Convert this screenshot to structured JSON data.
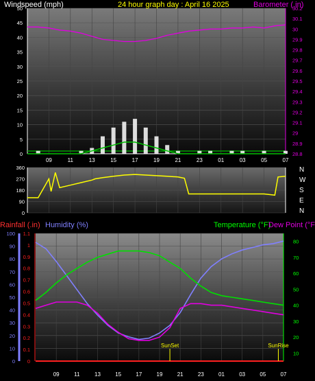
{
  "header": {
    "windspeed_label": "Windspeed (mph)",
    "title": "24 hour graph day : April 16 2025",
    "barometer_label": "Barometer (.in)"
  },
  "footer_labels": {
    "rainfall_label": "Rainfall (.in)",
    "humidity_label": "Humidity (%)",
    "temperature_label": "Temperature (°F)",
    "dewpoint_label": "Dew Point (°F)",
    "sunset_label": "SunSet",
    "sunrise_label": "SunRise"
  },
  "colors": {
    "wind": "#ffffff",
    "wind_avg": "#00c000",
    "barometer": "#e000e0",
    "direction": "#ffff00",
    "humidity": "#8080ff",
    "temperature": "#00e000",
    "dewpoint": "#e000e0",
    "rainfall": "#ff2020",
    "axis_left_labels": "#ffffff",
    "barometer_axis": "#e000e0",
    "temp_axis": "#00ff00"
  },
  "x_ticks": [
    "09",
    "11",
    "13",
    "15",
    "17",
    "19",
    "21",
    "23",
    "01",
    "03",
    "05",
    "07"
  ],
  "chart_data": [
    {
      "type": "line",
      "name": "wind_barometer",
      "title": "24 hour graph day : April 16 2025",
      "ylabel": "Windspeed (mph)",
      "y2label": "Barometer (.in)",
      "ylim": [
        0,
        50
      ],
      "y_ticks": [
        0,
        5,
        10,
        15,
        20,
        25,
        30,
        35,
        40,
        45,
        50
      ],
      "y2lim": [
        28.8,
        30.2
      ],
      "y2_ticks": [
        "28.8",
        "28.9",
        "29",
        "29.1",
        "29.2",
        "29.3",
        "29.4",
        "29.5",
        "29.6",
        "29.7",
        "29.8",
        "29.9",
        "30",
        "30.1",
        "30.2"
      ],
      "x_hours": [
        7,
        8,
        9,
        10,
        11,
        12,
        13,
        14,
        15,
        16,
        17,
        18,
        19,
        20,
        21,
        22,
        23,
        24,
        25,
        26,
        27,
        28,
        29,
        30,
        31
      ],
      "series": [
        {
          "name": "Barometer",
          "values": [
            30.02,
            30.02,
            30.01,
            29.99,
            29.98,
            29.96,
            29.93,
            29.9,
            29.89,
            29.88,
            29.88,
            29.89,
            29.91,
            29.94,
            29.96,
            29.98,
            29.99,
            30.0,
            30.0,
            30.01,
            30.01,
            30.02,
            30.01,
            30.03,
            30.04
          ]
        },
        {
          "name": "Wind gust",
          "values": [
            0,
            1,
            0,
            0,
            0,
            1,
            2,
            6,
            9,
            11,
            12,
            9,
            6,
            3,
            1,
            0,
            1,
            1,
            0,
            1,
            1,
            0,
            1,
            0,
            1
          ]
        },
        {
          "name": "Wind average",
          "values": [
            0,
            0,
            0,
            0,
            0,
            0,
            1,
            2,
            3,
            4,
            4,
            3,
            2,
            1,
            0,
            0,
            0,
            0,
            0,
            0,
            0,
            0,
            0,
            0,
            0
          ]
        }
      ]
    },
    {
      "type": "line",
      "name": "wind_direction",
      "ylim": [
        0,
        360
      ],
      "y_ticks": [
        0,
        90,
        180,
        270,
        360
      ],
      "dir_labels": [
        "N",
        "W",
        "S",
        "E",
        "N"
      ],
      "x_hours": [
        7,
        8,
        9,
        9.2,
        9.6,
        10,
        11,
        12,
        13,
        13.3,
        14,
        15,
        16,
        17,
        18,
        19,
        20,
        21,
        21.6,
        22,
        23,
        24,
        25,
        26,
        27,
        28,
        29,
        30,
        30.3,
        31
      ],
      "values": [
        120,
        120,
        270,
        170,
        320,
        200,
        220,
        240,
        260,
        270,
        280,
        290,
        300,
        305,
        300,
        295,
        290,
        285,
        275,
        150,
        150,
        150,
        150,
        150,
        150,
        150,
        150,
        140,
        285,
        290
      ]
    },
    {
      "type": "line",
      "name": "humidity_temperature",
      "ylabel": "Humidity (%)",
      "y2label": "Temperature (°F)",
      "ylim": [
        0,
        100
      ],
      "y_ticks": [
        0,
        10,
        20,
        30,
        40,
        50,
        60,
        70,
        80,
        90,
        100
      ],
      "rain_lim": [
        0,
        1.1
      ],
      "rain_ticks": [
        "0",
        "0.1",
        "0.2",
        "0.3",
        "0.4",
        "0.5",
        "0.6",
        "0.7",
        "0.8",
        "0.9",
        "1",
        "1.1"
      ],
      "temp_lim": [
        5,
        85
      ],
      "temp_ticks": [
        10,
        20,
        30,
        40,
        50,
        60,
        70,
        80
      ],
      "x_hours": [
        7,
        8,
        9,
        10,
        11,
        12,
        13,
        14,
        15,
        16,
        17,
        18,
        19,
        20,
        21,
        22,
        23,
        24,
        25,
        26,
        27,
        28,
        29,
        30,
        31
      ],
      "series": [
        {
          "name": "Humidity",
          "values": [
            93,
            88,
            78,
            67,
            56,
            45,
            36,
            28,
            22,
            19,
            17,
            18,
            22,
            28,
            38,
            52,
            65,
            74,
            80,
            84,
            87,
            89,
            91,
            92,
            94
          ]
        },
        {
          "name": "Temperature",
          "values": [
            43,
            48,
            54,
            59,
            63,
            67,
            70,
            72,
            74,
            74,
            74,
            73,
            71,
            67,
            63,
            57,
            52,
            48,
            46,
            45,
            44,
            43,
            42,
            41,
            40
          ]
        },
        {
          "name": "Dew Point",
          "values": [
            38,
            40,
            42,
            42,
            42,
            40,
            35,
            28,
            23,
            19,
            18,
            18,
            20,
            26,
            38,
            41,
            41,
            40,
            40,
            39,
            38,
            37,
            36,
            35,
            34
          ]
        },
        {
          "name": "Rainfall",
          "values": [
            0,
            0,
            0,
            0,
            0,
            0,
            0,
            0,
            0,
            0,
            0,
            0,
            0,
            0,
            0,
            0,
            0,
            0,
            0,
            0,
            0,
            0,
            0,
            0,
            0
          ]
        }
      ],
      "markers": [
        {
          "label": "SunSet",
          "hour": 20.0
        },
        {
          "label": "SunRise",
          "hour": 30.5
        }
      ]
    }
  ]
}
